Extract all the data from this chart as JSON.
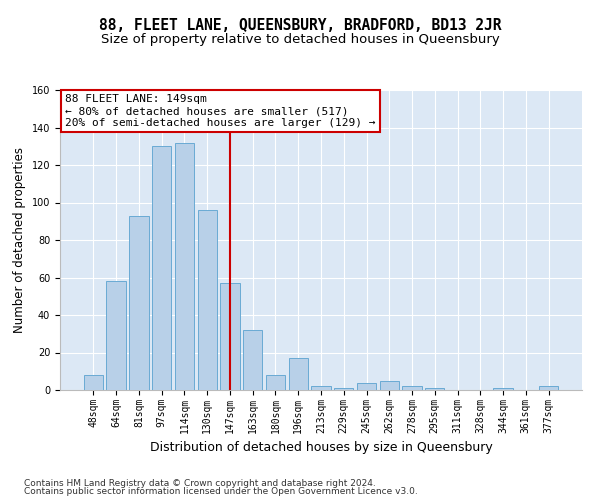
{
  "title": "88, FLEET LANE, QUEENSBURY, BRADFORD, BD13 2JR",
  "subtitle": "Size of property relative to detached houses in Queensbury",
  "xlabel": "Distribution of detached houses by size in Queensbury",
  "ylabel": "Number of detached properties",
  "categories": [
    "48sqm",
    "64sqm",
    "81sqm",
    "97sqm",
    "114sqm",
    "130sqm",
    "147sqm",
    "163sqm",
    "180sqm",
    "196sqm",
    "213sqm",
    "229sqm",
    "245sqm",
    "262sqm",
    "278sqm",
    "295sqm",
    "311sqm",
    "328sqm",
    "344sqm",
    "361sqm",
    "377sqm"
  ],
  "values": [
    8,
    58,
    93,
    130,
    132,
    96,
    57,
    32,
    8,
    17,
    2,
    1,
    4,
    5,
    2,
    1,
    0,
    0,
    1,
    0,
    2
  ],
  "bar_color": "#b8d0e8",
  "bar_edge_color": "#6aaad4",
  "vline_x_index": 6,
  "vline_color": "#cc0000",
  "annotation_text": "88 FLEET LANE: 149sqm\n← 80% of detached houses are smaller (517)\n20% of semi-detached houses are larger (129) →",
  "annotation_box_color": "#ffffff",
  "annotation_box_edge": "#cc0000",
  "ylim": [
    0,
    160
  ],
  "yticks": [
    0,
    20,
    40,
    60,
    80,
    100,
    120,
    140,
    160
  ],
  "background_color": "#dce8f5",
  "grid_color": "#ffffff",
  "footer1": "Contains HM Land Registry data © Crown copyright and database right 2024.",
  "footer2": "Contains public sector information licensed under the Open Government Licence v3.0.",
  "title_fontsize": 10.5,
  "subtitle_fontsize": 9.5,
  "xlabel_fontsize": 9,
  "ylabel_fontsize": 8.5,
  "tick_fontsize": 7,
  "annotation_fontsize": 8,
  "footer_fontsize": 6.5
}
